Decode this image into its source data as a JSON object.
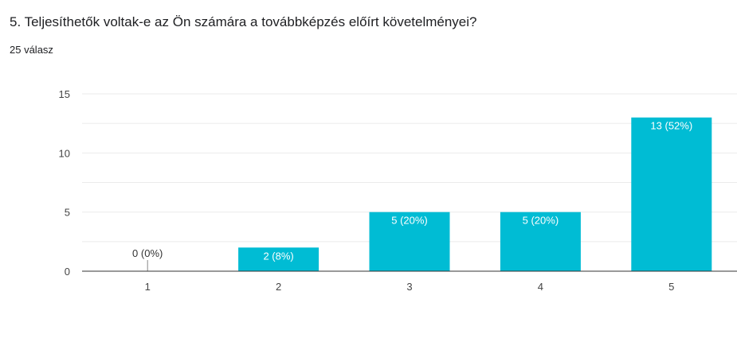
{
  "question": {
    "title": "5. Teljesíthetők voltak-e az Ön számára a továbbképzés előírt követelményei?",
    "response_count": "25 válasz"
  },
  "colors": {
    "bar": "#00bcd4",
    "grid": "#ebebeb",
    "axis": "#333333"
  },
  "chart_data": {
    "type": "bar",
    "categories": [
      "1",
      "2",
      "3",
      "4",
      "5"
    ],
    "values": [
      0,
      2,
      5,
      5,
      13
    ],
    "data_labels": [
      "0 (0%)",
      "2 (8%)",
      "5 (20%)",
      "5 (20%)",
      "13 (52%)"
    ],
    "ylim": [
      0,
      15
    ],
    "yticks": [
      0,
      5,
      10,
      15
    ],
    "grid": true,
    "xlabel": "",
    "ylabel": ""
  }
}
